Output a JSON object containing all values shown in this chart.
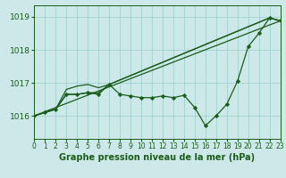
{
  "title": "Graphe pression niveau de la mer (hPa)",
  "background_color": "#cce8e8",
  "grid_color": "#99cccc",
  "line_color": "#1a5c1a",
  "ylim": [
    1015.3,
    1019.35
  ],
  "xlim": [
    0,
    23
  ],
  "yticks": [
    1016,
    1017,
    1018,
    1019
  ],
  "hours": [
    0,
    1,
    2,
    3,
    4,
    5,
    6,
    7,
    8,
    9,
    10,
    11,
    12,
    13,
    14,
    15,
    16,
    17,
    18,
    19,
    20,
    21,
    22,
    23
  ],
  "xtick_labels": [
    "0",
    "1",
    "2",
    "3",
    "4",
    "5",
    "6",
    "7",
    "8",
    "9",
    "10",
    "11",
    "12",
    "13",
    "14",
    "15",
    "16",
    "17",
    "18",
    "19",
    "20",
    "21",
    "22",
    "23"
  ],
  "main_line_x": [
    0,
    1,
    2,
    3,
    4,
    5,
    6,
    7,
    8,
    9,
    10,
    11,
    12,
    13,
    14,
    15,
    16,
    17,
    18,
    19,
    20,
    21,
    22,
    23
  ],
  "main_line_y": [
    1016.0,
    1016.1,
    1016.2,
    1016.65,
    1016.65,
    1016.7,
    1016.65,
    1016.95,
    1016.65,
    1016.6,
    1016.55,
    1016.55,
    1016.6,
    1016.55,
    1016.62,
    1016.25,
    1015.7,
    1016.0,
    1016.35,
    1017.05,
    1018.1,
    1018.5,
    1018.97,
    1018.88
  ],
  "upper_line_x": [
    0,
    1,
    2,
    3,
    4,
    5,
    6,
    7,
    22,
    23
  ],
  "upper_line_y": [
    1016.0,
    1016.1,
    1016.2,
    1016.8,
    1016.9,
    1016.95,
    1016.85,
    1016.95,
    1018.97,
    1018.88
  ],
  "mid_line_x": [
    0,
    1,
    2,
    3,
    4,
    5,
    6,
    7,
    22,
    23
  ],
  "mid_line_y": [
    1016.0,
    1016.1,
    1016.2,
    1016.65,
    1016.65,
    1016.7,
    1016.7,
    1016.95,
    1018.97,
    1018.88
  ],
  "trend_x": [
    0,
    23
  ],
  "trend_y": [
    1016.0,
    1018.88
  ],
  "ylabel_fontsize": 6.5,
  "xlabel_fontsize": 7.0,
  "tick_fontsize": 5.5
}
